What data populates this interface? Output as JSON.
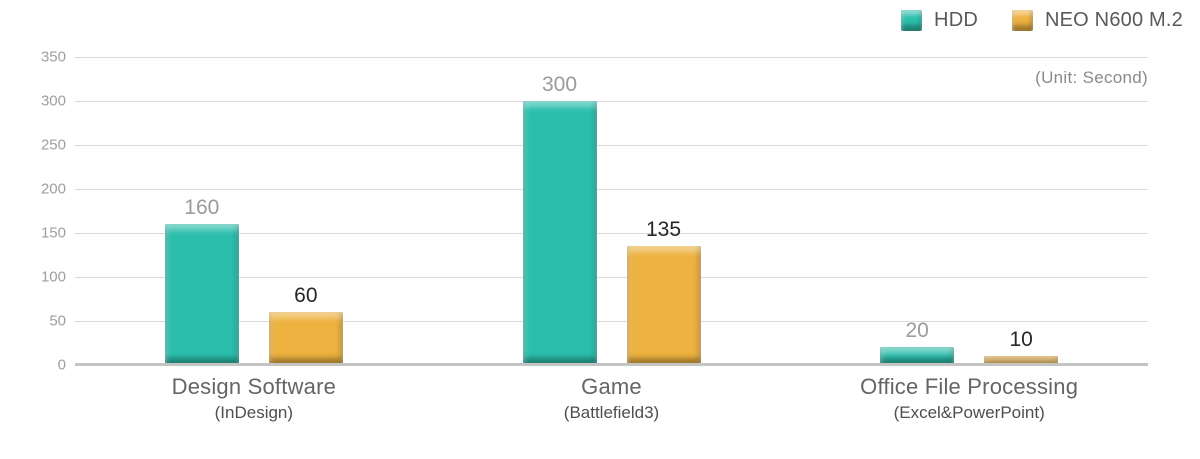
{
  "chart_data": {
    "type": "bar",
    "title": "",
    "unit_label": "(Unit: Second)",
    "legend_position": "top-right",
    "grid": true,
    "y_axis": {
      "min": 0,
      "max": 350,
      "tick_step": 50,
      "ticks": [
        350,
        300,
        250,
        200,
        150,
        100,
        50,
        0
      ]
    },
    "categories": [
      {
        "label": "Design Software",
        "sub_label": "(InDesign)"
      },
      {
        "label": "Game",
        "sub_label": "(Battlefield3)"
      },
      {
        "label": "Office File Processing",
        "sub_label": "(Excel&PowerPoint)"
      }
    ],
    "series": [
      {
        "name": "HDD",
        "color": "#2bbeac",
        "value_label_color": "#9b9b9b",
        "values": [
          160,
          300,
          20
        ]
      },
      {
        "name": "NEO N600 M.2",
        "color": "#edb240",
        "value_label_color": "#262626",
        "values": [
          60,
          135,
          10
        ]
      }
    ]
  },
  "colors": {
    "gridline": "#dadada",
    "baseline": "#c4c4c4",
    "axis_label": "#9e9e9e",
    "category_label": "#656565",
    "legend_text": "#595959",
    "unit_text": "#8a8a8a"
  }
}
